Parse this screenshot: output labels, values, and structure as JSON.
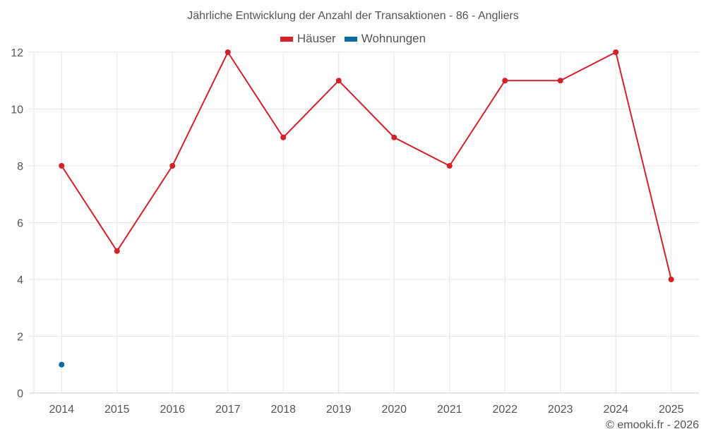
{
  "chart_data": {
    "type": "line",
    "title": "Jährliche Entwicklung der Anzahl der Transaktionen - 86 - Angliers",
    "categories": [
      "2014",
      "2015",
      "2016",
      "2017",
      "2018",
      "2019",
      "2020",
      "2021",
      "2022",
      "2023",
      "2024",
      "2025"
    ],
    "series": [
      {
        "name": "Häuser",
        "color": "#d62027",
        "values": [
          8,
          5,
          8,
          12,
          9,
          11,
          9,
          8,
          11,
          11,
          12,
          4
        ]
      },
      {
        "name": "Wohnungen",
        "color": "#0a6aa6",
        "values": [
          1,
          null,
          null,
          null,
          null,
          null,
          null,
          null,
          null,
          null,
          null,
          null
        ]
      }
    ],
    "yticks": [
      0,
      2,
      4,
      6,
      8,
      10,
      12
    ],
    "ylim": [
      0,
      12
    ],
    "xlabel": "",
    "ylabel": "",
    "grid": true,
    "legend_position": "top-center"
  },
  "credit": "© emooki.fr - 2026"
}
